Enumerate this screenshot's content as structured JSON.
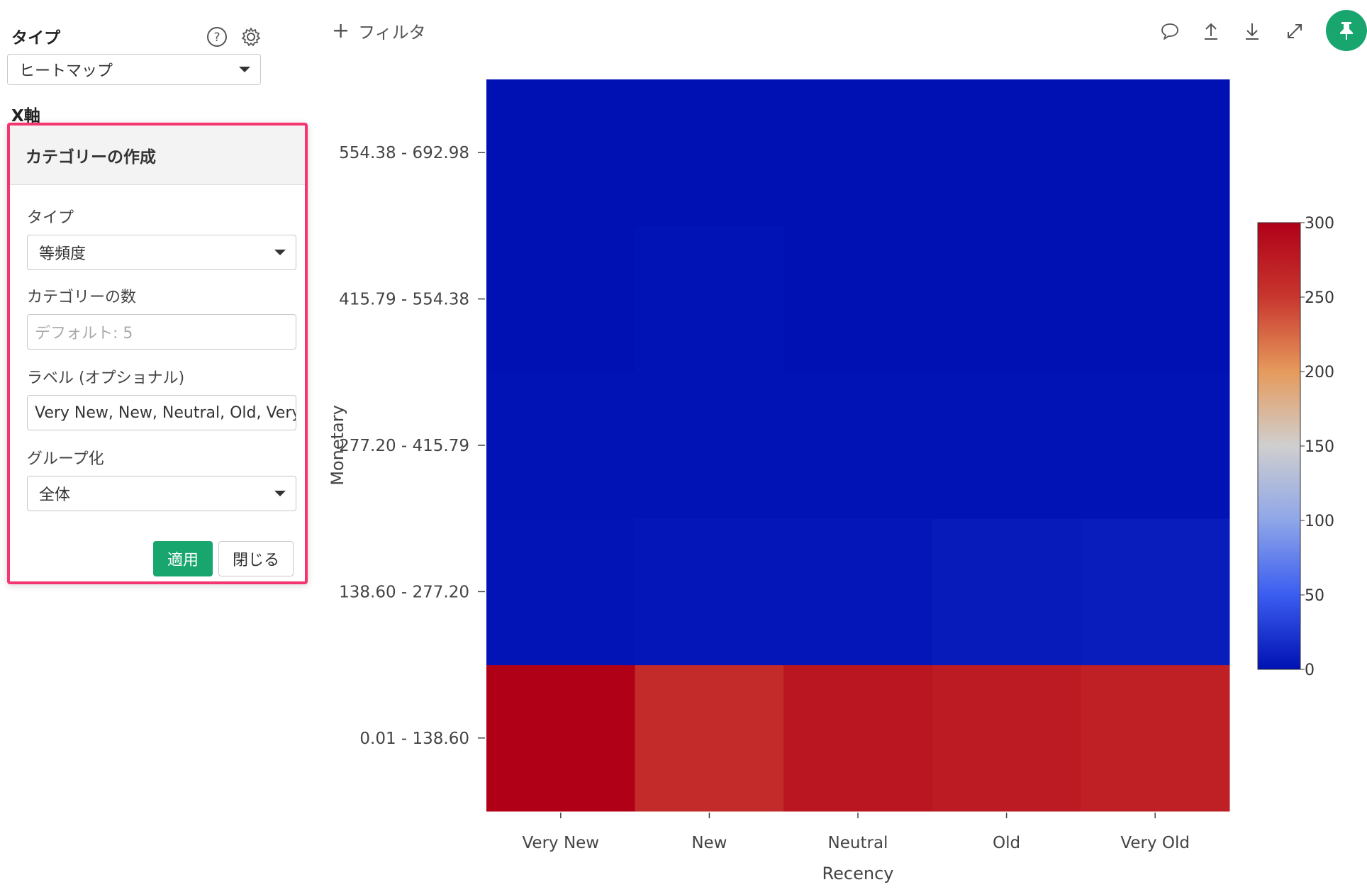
{
  "sidebar": {
    "type_label": "タイプ",
    "type_value": "ヒートマップ",
    "x_axis_label": "X軸"
  },
  "popover": {
    "title": "カテゴリーの作成",
    "type_label": "タイプ",
    "type_value": "等頻度",
    "count_label": "カテゴリーの数",
    "count_placeholder": "デフォルト: 5",
    "labels_label": "ラベル (オプショナル)",
    "labels_value": "Very New, New, Neutral, Old, Very Old",
    "group_label": "グループ化",
    "group_value": "全体",
    "apply_label": "適用",
    "close_label": "閉じる",
    "border_color": "#f4356f"
  },
  "toolbar": {
    "filter_label": "フィルタ",
    "icons": [
      "comment-icon",
      "upload-icon",
      "download-icon",
      "expand-icon",
      "pin-icon"
    ],
    "accent": "#18a66e"
  },
  "chart_data": {
    "type": "heatmap",
    "xlabel": "Recency",
    "ylabel": "Monetary",
    "x_categories": [
      "Very New",
      "New",
      "Neutral",
      "Old",
      "Very Old"
    ],
    "y_categories": [
      "0.01 - 138.60",
      "138.60 - 277.20",
      "277.20 - 415.79",
      "415.79 - 554.38",
      "554.38 - 692.98"
    ],
    "values": [
      [
        300,
        260,
        280,
        275,
        270
      ],
      [
        2,
        3,
        3,
        6,
        8
      ],
      [
        1,
        1,
        1,
        1,
        1
      ],
      [
        0,
        1,
        0,
        0,
        0
      ],
      [
        0,
        0,
        0,
        0,
        0
      ]
    ],
    "colorscale": {
      "min": 0,
      "max": 300,
      "ticks": [
        0,
        50,
        100,
        150,
        200,
        250,
        300
      ],
      "colors": [
        "#0011b3",
        "#3b5df0",
        "#8fa6e8",
        "#cfcfcf",
        "#e69a5c",
        "#c8362e",
        "#b00018"
      ]
    }
  }
}
